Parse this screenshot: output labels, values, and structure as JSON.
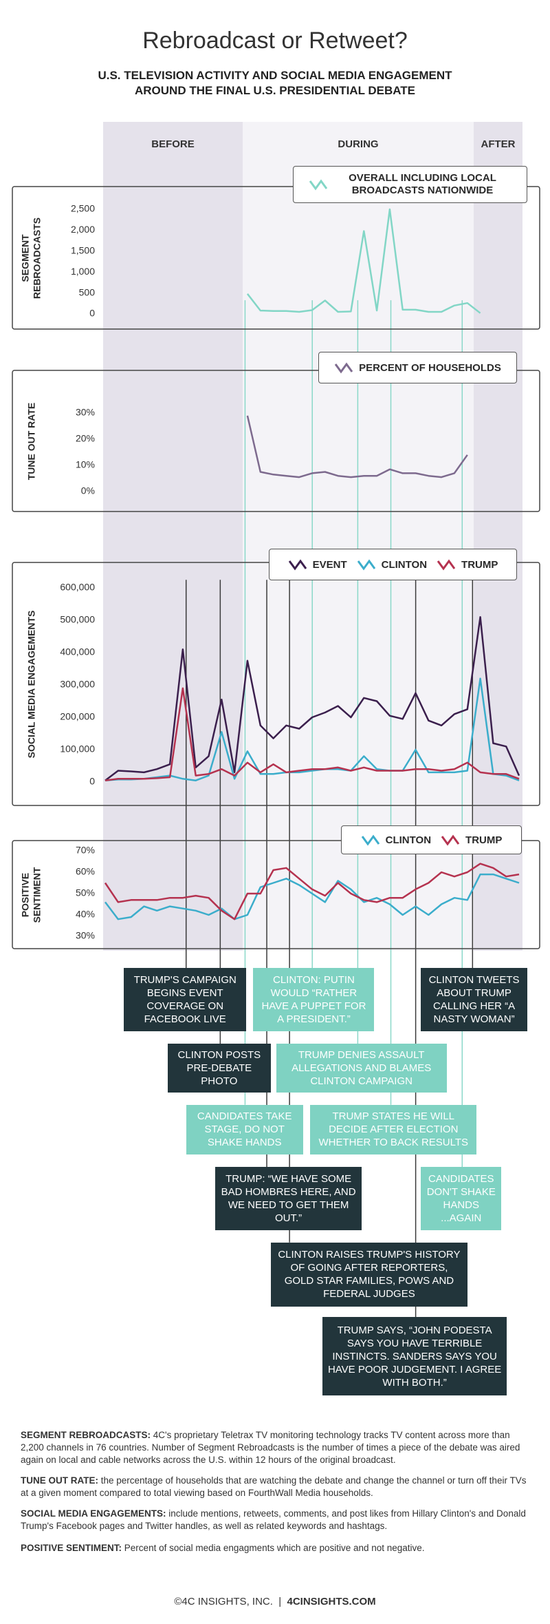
{
  "header": {
    "title": "Rebroadcast or Retweet?",
    "subtitle_lines": [
      "U.S. TELEVISION ACTIVITY AND SOCIAL MEDIA ENGAGEMENT",
      "AROUND THE FINAL U.S. PRESIDENTIAL DEBATE"
    ]
  },
  "phases": [
    "BEFORE",
    "DURING",
    "AFTER"
  ],
  "chart_data": [
    {
      "type": "line",
      "y_label": "SEGMENT REBROADCASTS",
      "x": [
        0,
        1,
        2,
        3,
        4,
        5,
        6,
        7,
        8,
        9,
        10,
        11,
        12,
        13,
        14,
        15,
        16,
        17,
        18,
        19,
        20,
        21,
        22,
        23,
        24,
        25,
        26,
        27,
        28,
        29,
        30,
        31,
        32
      ],
      "xlim": [
        0,
        32
      ],
      "ylim": [
        0,
        2500
      ],
      "yticks": [
        0,
        500,
        {
          "value": 1000,
          "label": "1,000"
        },
        {
          "value": 1500,
          "label": "1,500"
        },
        {
          "value": 2000,
          "label": "2,000"
        },
        {
          "value": 2500,
          "label": "2,500"
        }
      ],
      "grid": false,
      "series": [
        {
          "name": "OVERALL INCLUDING LOCAL BROADCASTS NATIONWIDE",
          "color": "#82d6c6",
          "values": [
            null,
            null,
            null,
            null,
            null,
            null,
            null,
            null,
            null,
            null,
            null,
            480,
            80,
            70,
            70,
            50,
            90,
            320,
            50,
            60,
            1980,
            80,
            2500,
            100,
            100,
            50,
            50,
            200,
            260,
            20,
            null,
            null,
            null
          ]
        }
      ]
    },
    {
      "type": "line",
      "y_label": "TUNE OUT RATE",
      "x": [
        0,
        1,
        2,
        3,
        4,
        5,
        6,
        7,
        8,
        9,
        10,
        11,
        12,
        13,
        14,
        15,
        16,
        17,
        18,
        19,
        20,
        21,
        22,
        23,
        24,
        25,
        26,
        27,
        28,
        29,
        30,
        31,
        32
      ],
      "xlim": [
        0,
        32
      ],
      "ylim": [
        0,
        30
      ],
      "yticks": [
        {
          "value": 0,
          "label": "0%"
        },
        {
          "value": 10,
          "label": "10%"
        },
        {
          "value": 20,
          "label": "20%"
        },
        {
          "value": 30,
          "label": "30%"
        }
      ],
      "grid": false,
      "series": [
        {
          "name": "PERCENT OF HOUSEHOLDS",
          "color": "#7d6a8e",
          "values": [
            null,
            null,
            null,
            null,
            null,
            null,
            null,
            null,
            null,
            null,
            null,
            29,
            7.5,
            6.5,
            6,
            5.5,
            7,
            7.5,
            6,
            5.5,
            6,
            6,
            8.5,
            7,
            7,
            6,
            5.5,
            7,
            14,
            null,
            null,
            null,
            null
          ]
        }
      ]
    },
    {
      "type": "line",
      "y_label": "SOCIAL MEDIA ENGAGEMENTS",
      "x": [
        0,
        1,
        2,
        3,
        4,
        5,
        6,
        7,
        8,
        9,
        10,
        11,
        12,
        13,
        14,
        15,
        16,
        17,
        18,
        19,
        20,
        21,
        22,
        23,
        24,
        25,
        26,
        27,
        28,
        29,
        30,
        31,
        32
      ],
      "xlim": [
        0,
        32
      ],
      "ylim": [
        0,
        600000
      ],
      "yticks": [
        0,
        {
          "value": 100000,
          "label": "100,000"
        },
        {
          "value": 200000,
          "label": "200,000"
        },
        {
          "value": 300000,
          "label": "300,000"
        },
        {
          "value": 400000,
          "label": "400,000"
        },
        {
          "value": 500000,
          "label": "500,000"
        },
        {
          "value": 600000,
          "label": "600,000"
        }
      ],
      "grid": false,
      "series": [
        {
          "name": "EVENT",
          "color": "#3b1f4d",
          "values": [
            5000,
            35000,
            33000,
            30000,
            40000,
            55000,
            410000,
            45000,
            80000,
            255000,
            30000,
            375000,
            175000,
            135000,
            175000,
            165000,
            200000,
            215000,
            235000,
            200000,
            260000,
            250000,
            205000,
            195000,
            275000,
            190000,
            175000,
            210000,
            225000,
            510000,
            120000,
            110000,
            20000
          ]
        },
        {
          "name": "CLINTON",
          "color": "#3badcb",
          "values": [
            5000,
            8000,
            8000,
            10000,
            15000,
            20000,
            10000,
            5000,
            20000,
            155000,
            10000,
            95000,
            25000,
            25000,
            30000,
            30000,
            35000,
            40000,
            40000,
            35000,
            80000,
            40000,
            35000,
            35000,
            100000,
            30000,
            30000,
            30000,
            35000,
            320000,
            25000,
            20000,
            5000
          ]
        },
        {
          "name": "TRUMP",
          "color": "#b5324f",
          "values": [
            5000,
            10000,
            10000,
            10000,
            12000,
            15000,
            290000,
            20000,
            25000,
            40000,
            20000,
            60000,
            30000,
            55000,
            30000,
            35000,
            40000,
            40000,
            45000,
            35000,
            45000,
            35000,
            35000,
            35000,
            40000,
            40000,
            35000,
            40000,
            60000,
            30000,
            25000,
            25000,
            10000
          ]
        }
      ]
    },
    {
      "type": "line",
      "y_label": "POSITIVE SENTIMENT",
      "x": [
        0,
        1,
        2,
        3,
        4,
        5,
        6,
        7,
        8,
        9,
        10,
        11,
        12,
        13,
        14,
        15,
        16,
        17,
        18,
        19,
        20,
        21,
        22,
        23,
        24,
        25,
        26,
        27,
        28,
        29,
        30,
        31,
        32
      ],
      "xlim": [
        0,
        32
      ],
      "ylim": [
        30,
        70
      ],
      "yticks": [
        {
          "value": 30,
          "label": "30%"
        },
        {
          "value": 40,
          "label": "40%"
        },
        {
          "value": 50,
          "label": "50%"
        },
        {
          "value": 60,
          "label": "60%"
        },
        {
          "value": 70,
          "label": "70%"
        }
      ],
      "grid": false,
      "series": [
        {
          "name": "CLINTON",
          "color": "#3badcb",
          "values": [
            46,
            38,
            39,
            44,
            42,
            44,
            43,
            42,
            40,
            43,
            38,
            40,
            53,
            55,
            57,
            54,
            50,
            46,
            56,
            52,
            46,
            48,
            45,
            40,
            44,
            40,
            45,
            48,
            47,
            59,
            59,
            57,
            55
          ]
        },
        {
          "name": "TRUMP",
          "color": "#b5324f",
          "values": [
            55,
            46,
            47,
            47,
            47,
            48,
            48,
            49,
            48,
            42,
            38,
            50,
            50,
            61,
            62,
            57,
            52,
            49,
            55,
            50,
            47,
            46,
            48,
            48,
            52,
            55,
            60,
            58,
            60,
            64,
            62,
            58,
            59
          ]
        }
      ]
    }
  ],
  "annotations": [
    {
      "text": "TRUMP'S CAMPAIGN BEGINS EVENT COVERAGE ON FACEBOOK LIVE",
      "style": "dark"
    },
    {
      "text": "CLINTON: PUTIN WOULD “RATHER HAVE A PUPPET FOR A PRESIDENT.”",
      "style": "teal"
    },
    {
      "text": "CLINTON TWEETS ABOUT TRUMP CALLING HER “A NASTY WOMAN”",
      "style": "dark"
    },
    {
      "text": "CLINTON POSTS PRE-DEBATE PHOTO",
      "style": "dark"
    },
    {
      "text": "TRUMP DENIES ASSAULT ALLEGATIONS AND BLAMES CLINTON CAMPAIGN",
      "style": "teal"
    },
    {
      "text": "CANDIDATES TAKE STAGE, DO NOT SHAKE HANDS",
      "style": "teal"
    },
    {
      "text": "TRUMP STATES HE WILL DECIDE AFTER ELECTION WHETHER TO BACK RESULTS",
      "style": "teal"
    },
    {
      "text": "TRUMP: “WE HAVE SOME BAD HOMBRES HERE, AND WE NEED TO GET THEM OUT.”",
      "style": "dark"
    },
    {
      "text": "CANDIDATES DON'T SHAKE HANDS ...AGAIN",
      "style": "teal"
    },
    {
      "text": "CLINTON RAISES TRUMP'S HISTORY OF GOING AFTER REPORTERS, GOLD STAR FAMILIES, POWS AND FEDERAL JUDGES",
      "style": "dark"
    },
    {
      "text": "TRUMP SAYS, “JOHN PODESTA SAYS YOU HAVE TERRIBLE INSTINCTS. SANDERS SAYS YOU HAVE POOR JUDGEMENT. I AGREE WITH BOTH.”",
      "style": "dark"
    }
  ],
  "notes": [
    {
      "term": "SEGMENT REBROADCASTS:",
      "text": "4C's proprietary Teletrax TV monitoring technology tracks TV content across more than 2,200 channels in 76 countries. Number of Segment Rebroadcasts is the number of times a piece of the debate was aired again on local and cable networks across the U.S. within 12 hours of the original broadcast."
    },
    {
      "term": "TUNE OUT RATE:",
      "text": "the percentage of households that are watching the debate and change the channel or turn off their TVs at a given moment compared to total viewing based on FourthWall Media households."
    },
    {
      "term": "SOCIAL MEDIA ENGAGEMENTS:",
      "text": "include mentions, retweets, comments, and post likes from Hillary Clinton's and Donald Trump's Facebook pages and Twitter handles, as well as related keywords and hashtags."
    },
    {
      "term": "POSITIVE SENTIMENT:",
      "text": "Percent of social media engagments which are positive and not negative."
    }
  ],
  "footer": {
    "copyright": "©4C INSIGHTS, INC.",
    "site": "4CINSIGHTS.COM"
  }
}
